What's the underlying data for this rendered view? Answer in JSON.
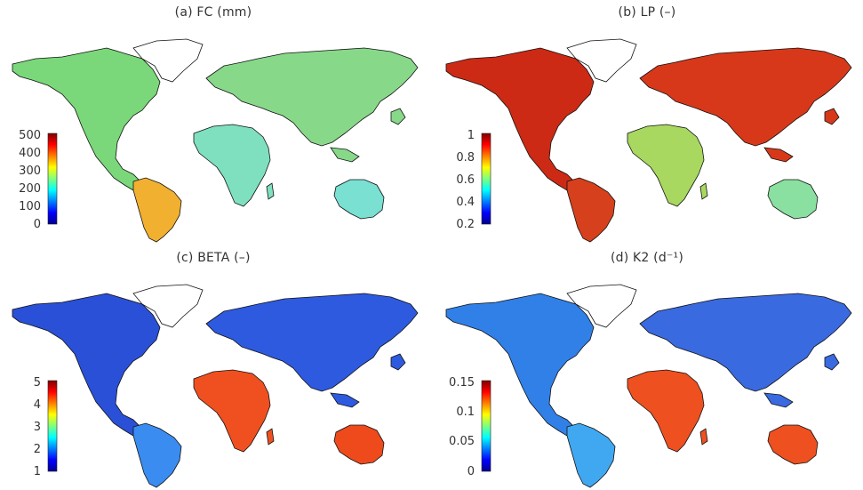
{
  "figure": {
    "panels": [
      {
        "id": "a",
        "title": "(a) FC (mm)",
        "colorbar": {
          "ticks": [
            "500",
            "400",
            "300",
            "200",
            "100",
            "0"
          ],
          "range": [
            0,
            500
          ]
        },
        "fills": {
          "north_america": "#7ad87a",
          "south_america": "#f2b030",
          "europe_asia": "#88d88a",
          "africa": "#7fe0c0",
          "australia": "#79e0d2",
          "greenland": "#ffffff"
        }
      },
      {
        "id": "b",
        "title": "(b) LP (–)",
        "colorbar": {
          "ticks": [
            "1",
            "0.8",
            "0.6",
            "0.4",
            "0.2"
          ],
          "range": [
            0.2,
            1
          ]
        },
        "fills": {
          "north_america": "#cc2a14",
          "south_america": "#d6401c",
          "europe_asia": "#d8381a",
          "africa": "#a8d860",
          "australia": "#8ae0a0",
          "greenland": "#ffffff"
        }
      },
      {
        "id": "c",
        "title": "(c) BETA (–)",
        "colorbar": {
          "ticks": [
            "5",
            "4",
            "3",
            "2",
            "1"
          ],
          "range": [
            1,
            5
          ]
        },
        "fills": {
          "north_america": "#2a50d8",
          "south_america": "#3a8cf0",
          "europe_asia": "#2e5ae0",
          "africa": "#f05020",
          "australia": "#ee4a1c",
          "greenland": "#ffffff"
        }
      },
      {
        "id": "d",
        "title": "(d) K2 (d⁻¹)",
        "colorbar": {
          "ticks": [
            "0.15",
            "0.1",
            "0.05",
            "0"
          ],
          "range": [
            0,
            0.15
          ]
        },
        "fills": {
          "north_america": "#3080e8",
          "south_america": "#40a8f0",
          "europe_asia": "#3a6ae0",
          "africa": "#ee5020",
          "australia": "#ee5020",
          "greenland": "#ffffff"
        }
      }
    ],
    "colormap": "jet"
  }
}
